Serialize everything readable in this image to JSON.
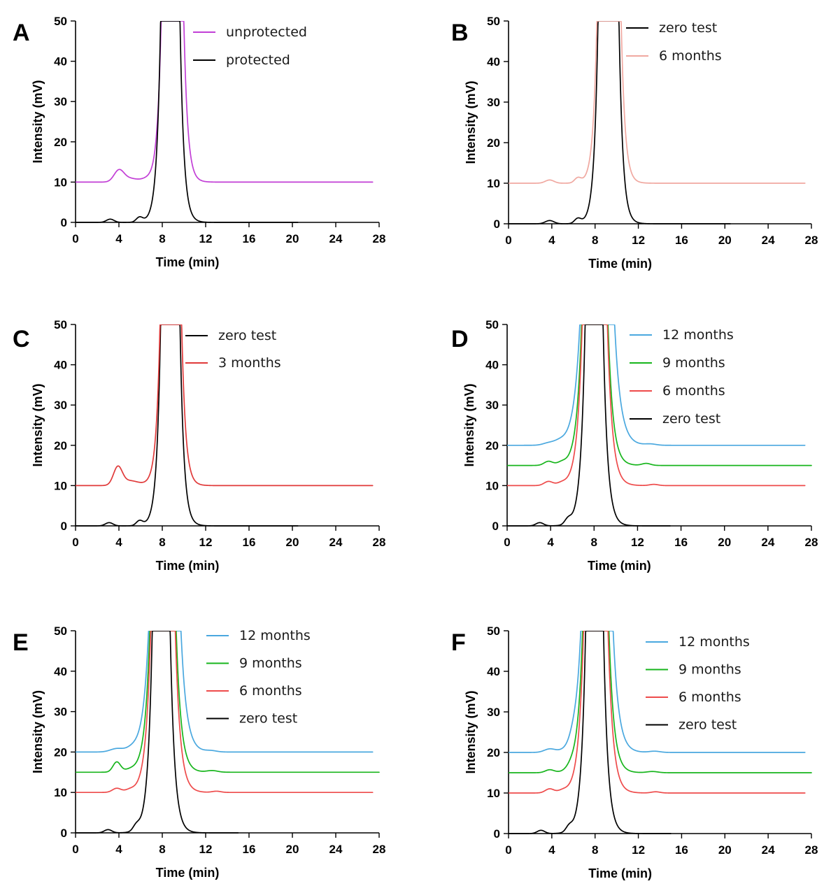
{
  "chart_data": [
    {
      "panel": "A",
      "type": "line",
      "xlabel": "Time (min)",
      "ylabel": "Intensity (mV)",
      "xlim": [
        0,
        28
      ],
      "ylim": [
        0,
        50
      ],
      "xticks": [
        0,
        4,
        8,
        12,
        16,
        20,
        24,
        28
      ],
      "yticks": [
        0,
        10,
        20,
        30,
        40,
        50
      ],
      "legend_position": "top-right",
      "series": [
        {
          "name": "unprotected",
          "color": "#c23fd6",
          "baseline": 10,
          "end": 27.4,
          "bumps": [
            [
              4.0,
              2.8,
              0.45
            ],
            [
              5.0,
              0.9,
              0.7
            ],
            [
              6.5,
              0.5,
              0.5
            ]
          ],
          "peak": {
            "center": 8.85,
            "width": 1.15,
            "tail": 0.35
          }
        },
        {
          "name": "protected",
          "color": "#000000",
          "baseline": 0,
          "end": 20.5,
          "bumps": [
            [
              3.2,
              0.8,
              0.35
            ],
            [
              5.9,
              1.2,
              0.3
            ]
          ],
          "peak": {
            "center": 8.65,
            "width": 1.0,
            "tail": 0.35
          }
        }
      ]
    },
    {
      "panel": "B",
      "type": "line",
      "xlabel": "Time (min)",
      "ylabel": "Intensity (mV)",
      "xlim": [
        0,
        28
      ],
      "ylim": [
        0,
        50
      ],
      "xticks": [
        0,
        4,
        8,
        12,
        16,
        20,
        24,
        28
      ],
      "yticks": [
        0,
        10,
        20,
        30,
        40,
        50
      ],
      "legend_position": "top-right",
      "series": [
        {
          "name": "zero test",
          "color": "#000000",
          "baseline": 0,
          "end": 20.5,
          "bumps": [
            [
              3.8,
              0.8,
              0.4
            ],
            [
              6.4,
              1.2,
              0.3
            ]
          ],
          "peak": {
            "center": 9.15,
            "width": 1.15,
            "tail": 0.35
          }
        },
        {
          "name": "6 months",
          "color": "#f0a8a0",
          "baseline": 10,
          "end": 27.4,
          "bumps": [
            [
              3.8,
              0.8,
              0.4
            ],
            [
              6.4,
              1.2,
              0.3
            ]
          ],
          "peak": {
            "center": 9.2,
            "width": 1.3,
            "tail": 0.35
          }
        }
      ]
    },
    {
      "panel": "C",
      "type": "line",
      "xlabel": "Time (min)",
      "ylabel": "Intensity (mV)",
      "xlim": [
        0,
        28
      ],
      "ylim": [
        0,
        50
      ],
      "xticks": [
        0,
        4,
        8,
        12,
        16,
        20,
        24,
        28
      ],
      "yticks": [
        0,
        10,
        20,
        30,
        40,
        50
      ],
      "legend_position": "top-right",
      "series": [
        {
          "name": "zero test",
          "color": "#000000",
          "baseline": 0,
          "end": 20.5,
          "bumps": [
            [
              3.1,
              0.8,
              0.35
            ],
            [
              5.9,
              1.2,
              0.3
            ]
          ],
          "peak": {
            "center": 8.65,
            "width": 1.0,
            "tail": 0.35
          }
        },
        {
          "name": "3 months",
          "color": "#e03a3a",
          "baseline": 10,
          "end": 27.4,
          "bumps": [
            [
              3.9,
              4.4,
              0.4
            ],
            [
              5.0,
              1.2,
              0.8
            ]
          ],
          "peak": {
            "center": 8.7,
            "width": 1.05,
            "tail": 0.35
          }
        }
      ]
    },
    {
      "panel": "D",
      "type": "line",
      "xlabel": "Time (min)",
      "ylabel": "Intensity (mV)",
      "xlim": [
        0,
        28
      ],
      "ylim": [
        0,
        50
      ],
      "xticks": [
        0,
        4,
        8,
        12,
        16,
        20,
        24,
        28
      ],
      "yticks": [
        0,
        10,
        20,
        30,
        40,
        50
      ],
      "legend_position": "top-right",
      "series": [
        {
          "name": "12 months",
          "color": "#4aa8df",
          "baseline": 20,
          "end": 27.4,
          "bumps": [
            [
              3.8,
              0.5,
              0.5
            ],
            [
              4.8,
              0.7,
              0.5
            ],
            [
              13.2,
              0.3,
              0.5
            ]
          ],
          "peak": {
            "center": 8.15,
            "width": 1.4,
            "tail": 0.55
          }
        },
        {
          "name": "9 months",
          "color": "#17b51c",
          "baseline": 15,
          "end": 28,
          "bumps": [
            [
              3.8,
              1.0,
              0.4
            ],
            [
              5.0,
              0.6,
              0.4
            ],
            [
              12.8,
              0.5,
              0.4
            ]
          ],
          "peak": {
            "center": 7.95,
            "width": 1.1,
            "tail": 0.45
          }
        },
        {
          "name": "6 months",
          "color": "#ee4b4b",
          "baseline": 10,
          "end": 27.4,
          "bumps": [
            [
              3.8,
              1.0,
              0.4
            ],
            [
              5.0,
              0.5,
              0.4
            ],
            [
              13.5,
              0.3,
              0.4
            ]
          ],
          "peak": {
            "center": 7.95,
            "width": 1.1,
            "tail": 0.45
          }
        },
        {
          "name": "zero test",
          "color": "#000000",
          "baseline": 0,
          "end": 15,
          "bumps": [
            [
              3.0,
              0.8,
              0.35
            ],
            [
              5.6,
              1.3,
              0.3
            ]
          ],
          "peak": {
            "center": 7.9,
            "width": 0.75,
            "tail": 0.4
          }
        }
      ]
    },
    {
      "panel": "E",
      "type": "line",
      "xlabel": "Time (min)",
      "ylabel": "Intensity (mV)",
      "xlim": [
        0,
        28
      ],
      "ylim": [
        0,
        50
      ],
      "xticks": [
        0,
        4,
        8,
        12,
        16,
        20,
        24,
        28
      ],
      "yticks": [
        0,
        10,
        20,
        30,
        40,
        50
      ],
      "legend_position": "top-right",
      "series": [
        {
          "name": "12 months",
          "color": "#4aa8df",
          "baseline": 20,
          "end": 27.4,
          "bumps": [
            [
              3.8,
              0.8,
              0.6
            ],
            [
              5.2,
              0.6,
              0.5
            ],
            [
              12.5,
              0.3,
              0.5
            ]
          ],
          "peak": {
            "center": 8.1,
            "width": 1.35,
            "tail": 0.5
          }
        },
        {
          "name": "9 months",
          "color": "#17b51c",
          "baseline": 15,
          "end": 28,
          "bumps": [
            [
              3.8,
              2.5,
              0.35
            ],
            [
              5.0,
              0.5,
              0.5
            ],
            [
              12.6,
              0.4,
              0.5
            ]
          ],
          "peak": {
            "center": 7.95,
            "width": 1.1,
            "tail": 0.45
          }
        },
        {
          "name": "6 months",
          "color": "#ee4b4b",
          "baseline": 10,
          "end": 27.4,
          "bumps": [
            [
              3.8,
              1.0,
              0.4
            ],
            [
              5.0,
              0.5,
              0.4
            ],
            [
              13.0,
              0.3,
              0.4
            ]
          ],
          "peak": {
            "center": 7.95,
            "width": 1.05,
            "tail": 0.45
          }
        },
        {
          "name": "zero test",
          "color": "#000000",
          "baseline": 0,
          "end": 15,
          "bumps": [
            [
              3.0,
              0.8,
              0.35
            ],
            [
              5.6,
              1.3,
              0.3
            ]
          ],
          "peak": {
            "center": 7.8,
            "width": 0.75,
            "tail": 0.4
          }
        }
      ]
    },
    {
      "panel": "F",
      "type": "line",
      "xlabel": "Time (min)",
      "ylabel": "Intensity (mV)",
      "xlim": [
        0,
        28
      ],
      "ylim": [
        0,
        50
      ],
      "xticks": [
        0,
        4,
        8,
        12,
        16,
        20,
        24,
        28
      ],
      "yticks": [
        0,
        10,
        20,
        30,
        40,
        50
      ],
      "legend_position": "top-right",
      "series": [
        {
          "name": "12 months",
          "color": "#4aa8df",
          "baseline": 20,
          "end": 27.4,
          "bumps": [
            [
              3.8,
              0.8,
              0.5
            ],
            [
              6.0,
              1.2,
              0.35
            ],
            [
              13.5,
              0.3,
              0.5
            ]
          ],
          "peak": {
            "center": 8.05,
            "width": 1.35,
            "tail": 0.5
          }
        },
        {
          "name": "9 months",
          "color": "#17b51c",
          "baseline": 15,
          "end": 28,
          "bumps": [
            [
              3.8,
              0.7,
              0.4
            ],
            [
              5.8,
              0.7,
              0.4
            ],
            [
              13.3,
              0.3,
              0.5
            ]
          ],
          "peak": {
            "center": 7.95,
            "width": 1.1,
            "tail": 0.45
          }
        },
        {
          "name": "6 months",
          "color": "#ee4b4b",
          "baseline": 10,
          "end": 27.4,
          "bumps": [
            [
              3.8,
              1.0,
              0.4
            ],
            [
              5.0,
              0.5,
              0.4
            ],
            [
              13.6,
              0.3,
              0.4
            ]
          ],
          "peak": {
            "center": 7.95,
            "width": 1.05,
            "tail": 0.45
          }
        },
        {
          "name": "zero test",
          "color": "#000000",
          "baseline": 0,
          "end": 15,
          "bumps": [
            [
              3.0,
              0.8,
              0.35
            ],
            [
              5.6,
              1.3,
              0.3
            ]
          ],
          "peak": {
            "center": 7.85,
            "width": 0.75,
            "tail": 0.4
          }
        }
      ]
    }
  ]
}
